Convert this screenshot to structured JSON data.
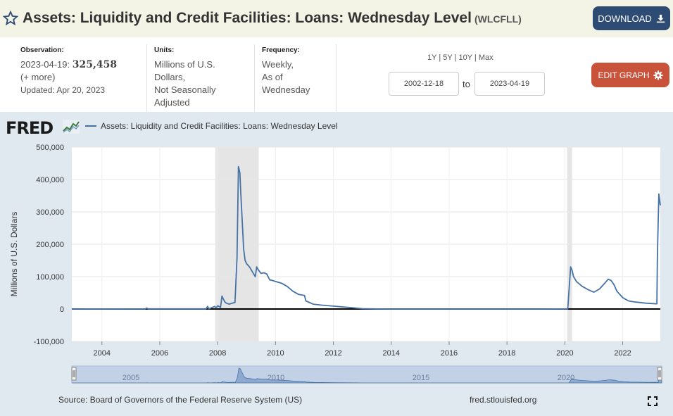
{
  "header": {
    "title": "Assets: Liquidity and Credit Facilities: Loans: Wednesday Level",
    "series_id": "(WLCFLL)",
    "download_label": "DOWNLOAD"
  },
  "meta": {
    "observation_label": "Observation:",
    "observation_date": "2023-04-19:",
    "observation_value": "325,458",
    "more_label": "(+ more)",
    "updated": "Updated: Apr 20, 2023",
    "units_label": "Units:",
    "units_lines": [
      "Millions of U.S.",
      "Dollars,",
      "Not Seasonally",
      "Adjusted"
    ],
    "frequency_label": "Frequency:",
    "frequency_lines": [
      "Weekly,",
      "As of",
      "Wednesday"
    ]
  },
  "controls": {
    "range_links": [
      "1Y",
      "5Y",
      "10Y",
      "Max"
    ],
    "start_date": "2002-12-18",
    "to_label": "to",
    "end_date": "2023-04-19",
    "edit_label": "EDIT GRAPH"
  },
  "brand": {
    "logo_text": "FRED"
  },
  "footer": {
    "source": "Source: Board of Governors of the Federal Reserve System (US)",
    "url": "fred.stlouisfed.org"
  },
  "colors": {
    "series": "#4572a7",
    "recession": "#e5e5e5",
    "title_bg": "#f4f4e6",
    "chart_bg": "#e1e9f0",
    "download": "#2d4b73",
    "edit": "#c8523a"
  },
  "chart_data": {
    "type": "line",
    "ylabel": "Millions of U.S. Dollars",
    "ylim": [
      -100000,
      500000
    ],
    "xlim": [
      2002.96,
      2023.3
    ],
    "y_ticks": [
      -100000,
      0,
      100000,
      200000,
      300000,
      400000,
      500000
    ],
    "y_tick_labels": [
      "-100,000",
      "0",
      "100,000",
      "200,000",
      "300,000",
      "400,000",
      "500,000"
    ],
    "x_ticks": [
      2004,
      2006,
      2008,
      2010,
      2012,
      2014,
      2016,
      2018,
      2020,
      2022
    ],
    "x_tick_labels": [
      "2004",
      "2006",
      "2008",
      "2010",
      "2012",
      "2014",
      "2016",
      "2018",
      "2020",
      "2022"
    ],
    "navigator_labels": [
      {
        "x": 2005,
        "label": "2005"
      },
      {
        "x": 2010,
        "label": "2010"
      },
      {
        "x": 2015,
        "label": "2015"
      },
      {
        "x": 2020,
        "label": "2020"
      }
    ],
    "recessions": [
      [
        2007.92,
        2009.42
      ],
      [
        2020.08,
        2020.25
      ]
    ],
    "legend_placement": "top-left",
    "series": [
      {
        "name": "Assets: Liquidity and Credit Facilities: Loans: Wednesday Level",
        "x": [
          2002.96,
          2005.5,
          2005.55,
          2005.6,
          2007.6,
          2007.65,
          2007.7,
          2007.9,
          2007.95,
          2008.0,
          2008.1,
          2008.15,
          2008.2,
          2008.25,
          2008.3,
          2008.4,
          2008.5,
          2008.6,
          2008.67,
          2008.72,
          2008.77,
          2008.8,
          2008.85,
          2008.9,
          2008.95,
          2009.0,
          2009.05,
          2009.1,
          2009.2,
          2009.3,
          2009.35,
          2009.4,
          2009.5,
          2009.6,
          2009.7,
          2009.8,
          2009.9,
          2010.0,
          2010.2,
          2010.4,
          2010.6,
          2010.8,
          2011.0,
          2011.05,
          2011.3,
          2011.6,
          2012.0,
          2012.5,
          2013.0,
          2013.5,
          2014.0,
          2016.0,
          2018.0,
          2019.0,
          2020.1,
          2020.2,
          2020.25,
          2020.3,
          2020.4,
          2020.6,
          2020.8,
          2021.0,
          2021.2,
          2021.4,
          2021.5,
          2021.6,
          2021.7,
          2021.8,
          2022.0,
          2022.2,
          2022.4,
          2022.6,
          2022.8,
          2023.0,
          2023.15,
          2023.18,
          2023.2,
          2023.25,
          2023.3
        ],
        "values": [
          0,
          500,
          3000,
          500,
          500,
          8000,
          500,
          8000,
          3000,
          10000,
          5000,
          40000,
          30000,
          22000,
          18000,
          15000,
          18000,
          20000,
          160000,
          440000,
          420000,
          360000,
          270000,
          185000,
          150000,
          140000,
          135000,
          130000,
          115000,
          100000,
          130000,
          122000,
          110000,
          112000,
          108000,
          90000,
          88000,
          85000,
          80000,
          70000,
          55000,
          45000,
          42000,
          25000,
          15000,
          12000,
          9000,
          5000,
          1000,
          300,
          100,
          100,
          100,
          100,
          500,
          130000,
          120000,
          100000,
          85000,
          70000,
          60000,
          52000,
          62000,
          82000,
          92000,
          88000,
          75000,
          55000,
          35000,
          25000,
          22000,
          20000,
          18000,
          17000,
          16000,
          16000,
          170000,
          355000,
          320000
        ]
      }
    ]
  }
}
